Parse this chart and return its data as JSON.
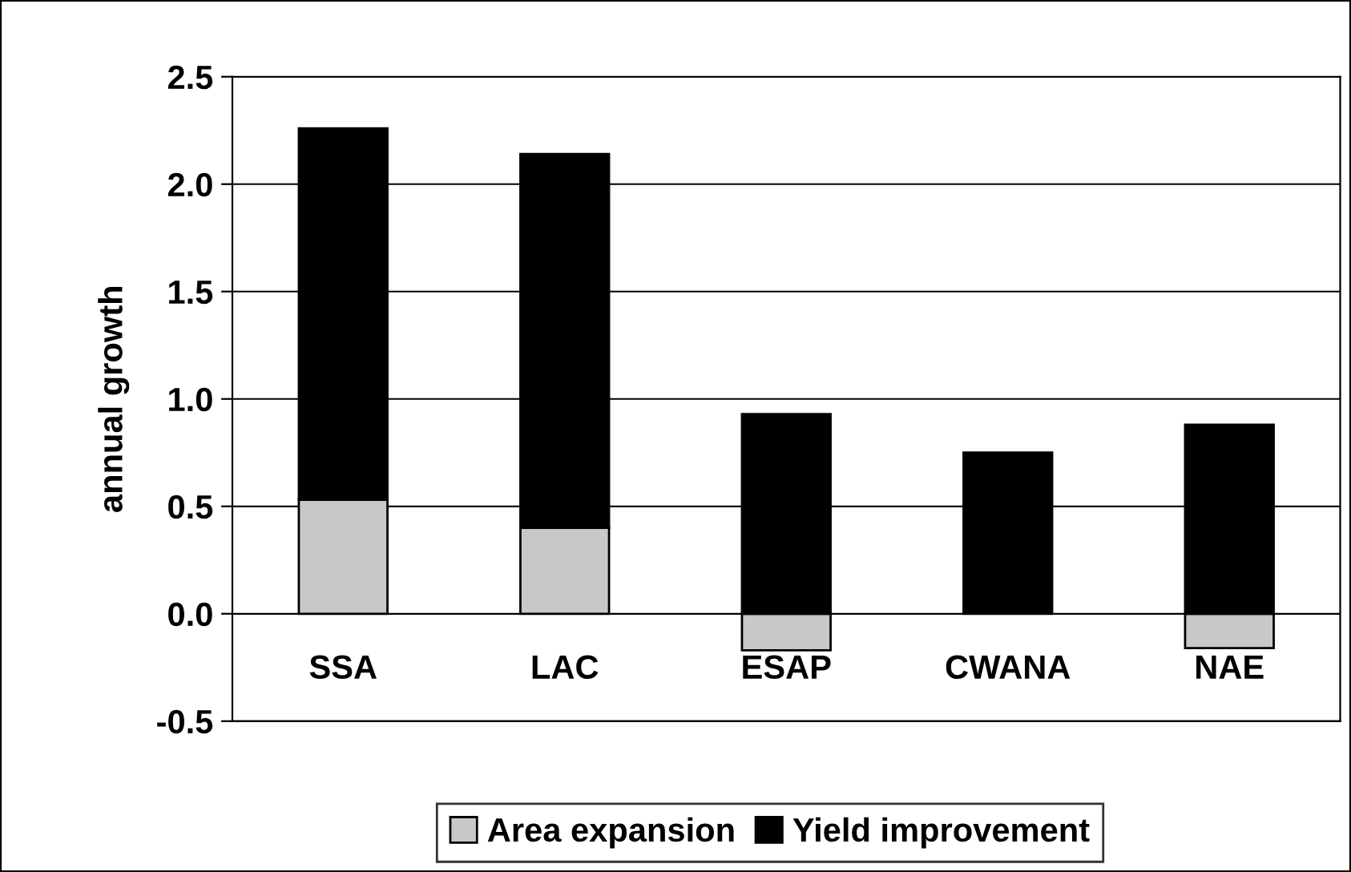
{
  "chart_data": {
    "type": "bar",
    "stacked": true,
    "ylabel": "annual growth",
    "categories": [
      "SSA",
      "LAC",
      "ESAP",
      "CWANA",
      "NAE"
    ],
    "series": [
      {
        "name": "Area expansion",
        "color": "#c8c8c8",
        "values": [
          0.53,
          0.4,
          -0.17,
          null,
          -0.16
        ]
      },
      {
        "name": "Yield improvement",
        "color": "#000000",
        "values": [
          1.73,
          1.74,
          0.93,
          0.75,
          0.88
        ]
      }
    ],
    "ylim": [
      -0.5,
      2.5
    ],
    "yticks": [
      {
        "value": -0.5,
        "label": "-0.5"
      },
      {
        "value": 0,
        "label": "0.0"
      },
      {
        "value": 0.5,
        "label": "0.5"
      },
      {
        "value": 1,
        "label": "1.0"
      },
      {
        "value": 1.5,
        "label": "1.5"
      },
      {
        "value": 2,
        "label": "2.0"
      },
      {
        "value": 2.5,
        "label": "2.5"
      }
    ],
    "grid": "y",
    "legend": "bottom"
  }
}
